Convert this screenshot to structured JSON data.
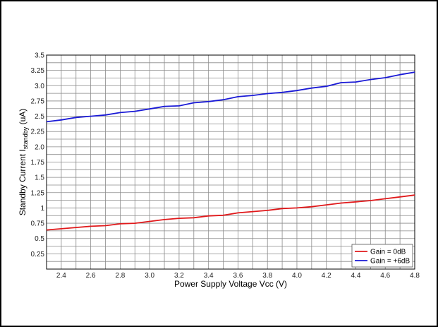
{
  "chart_data": {
    "type": "line",
    "title": "",
    "xlabel": "Power Supply Voltage Vcc (V)",
    "ylabel": "Standby Current I",
    "ylabel_subscript": "standby",
    "ylabel_unit": " (uA)",
    "xlim": [
      2.3,
      4.8
    ],
    "ylim": [
      0,
      3.5
    ],
    "xticks": [
      "2.4",
      "2.6",
      "2.8",
      "3.0",
      "3.2",
      "3.4",
      "3.6",
      "3.8",
      "4.0",
      "4.2",
      "4.4",
      "4.6",
      "4.8"
    ],
    "yticks": [
      "0.25",
      "0.5",
      "0.75",
      "1",
      "1.25",
      "1.5",
      "1.75",
      "2.0",
      "2.25",
      "2.5",
      "2.75",
      "3.0",
      "3.25",
      "3.5"
    ],
    "grid": true,
    "legend_position": "bottom-right",
    "x": [
      2.3,
      2.4,
      2.5,
      2.6,
      2.7,
      2.8,
      2.9,
      3.0,
      3.1,
      3.2,
      3.3,
      3.4,
      3.5,
      3.6,
      3.7,
      3.8,
      3.9,
      4.0,
      4.1,
      4.2,
      4.3,
      4.4,
      4.5,
      4.6,
      4.7,
      4.8
    ],
    "series": [
      {
        "name": "Gain = 0dB",
        "color": "#e0191b",
        "values": [
          0.64,
          0.66,
          0.68,
          0.7,
          0.71,
          0.74,
          0.75,
          0.78,
          0.81,
          0.83,
          0.84,
          0.87,
          0.88,
          0.92,
          0.94,
          0.96,
          0.99,
          1.0,
          1.02,
          1.05,
          1.08,
          1.1,
          1.12,
          1.15,
          1.18,
          1.21
        ]
      },
      {
        "name": "Gain = +6dB",
        "color": "#1a1ad6",
        "values": [
          2.41,
          2.44,
          2.48,
          2.5,
          2.52,
          2.56,
          2.58,
          2.62,
          2.66,
          2.67,
          2.72,
          2.74,
          2.77,
          2.82,
          2.84,
          2.87,
          2.89,
          2.92,
          2.96,
          2.99,
          3.05,
          3.06,
          3.1,
          3.13,
          3.18,
          3.22
        ]
      }
    ]
  }
}
